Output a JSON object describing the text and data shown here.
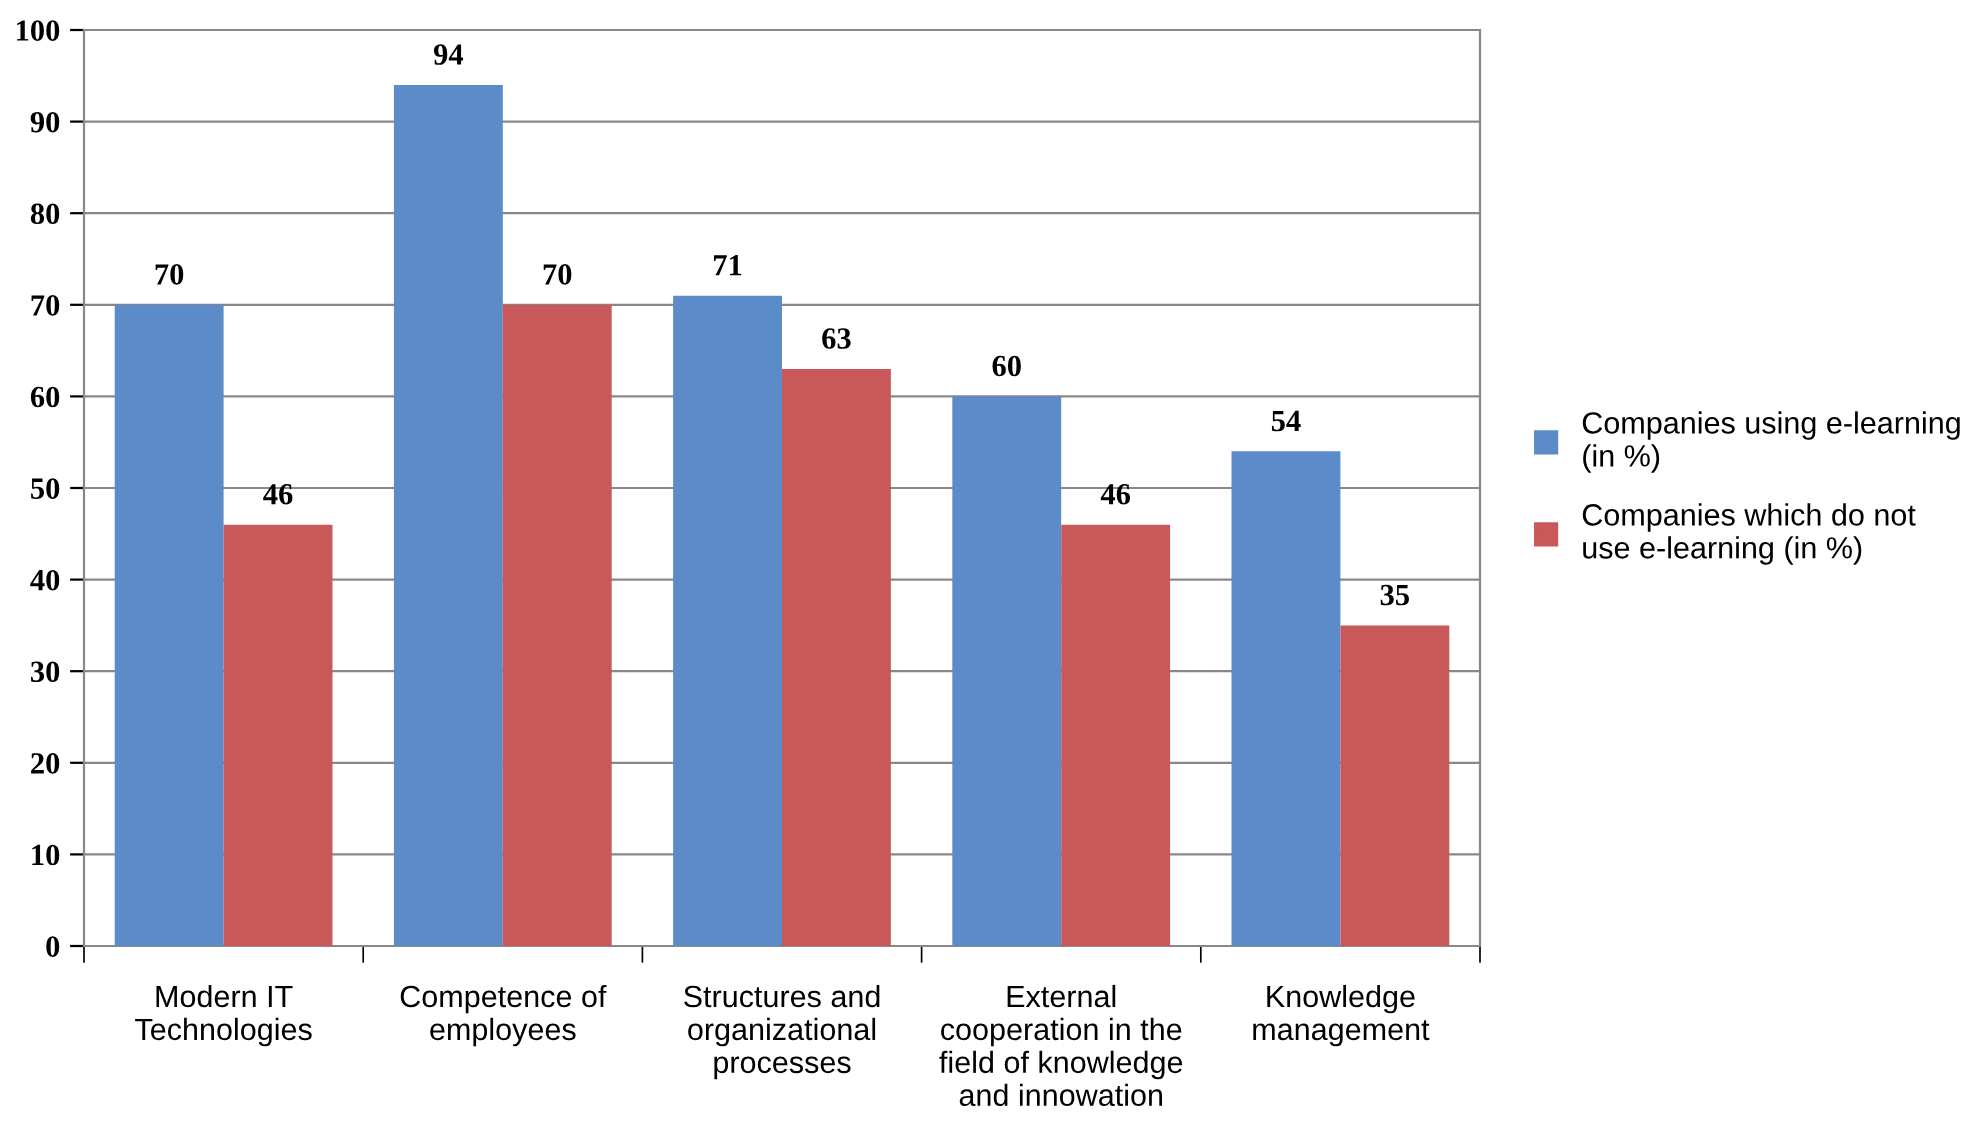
{
  "chart_data": {
    "type": "bar",
    "categories": [
      "Modern IT\nTechnologies",
      "Competence of\nemployees",
      "Structures and\norganizational\nprocesses",
      "External\ncooperation in the\nfield of knowledge\nand innowation",
      "Knowledge\nmanagement"
    ],
    "series": [
      {
        "name": "Companies using e-learning\n(in %)",
        "color": "#5b8bc9",
        "values": [
          70,
          94,
          71,
          60,
          54
        ]
      },
      {
        "name": "Companies which do not\nuse e-learning (in %)",
        "color": "#c9585a",
        "values": [
          46,
          70,
          63,
          46,
          35
        ]
      }
    ],
    "ylim": [
      0,
      100
    ],
    "yticks": [
      0,
      10,
      20,
      30,
      40,
      50,
      60,
      70,
      80,
      90,
      100
    ],
    "grid": "y",
    "legend": "right",
    "data_labels": true
  }
}
